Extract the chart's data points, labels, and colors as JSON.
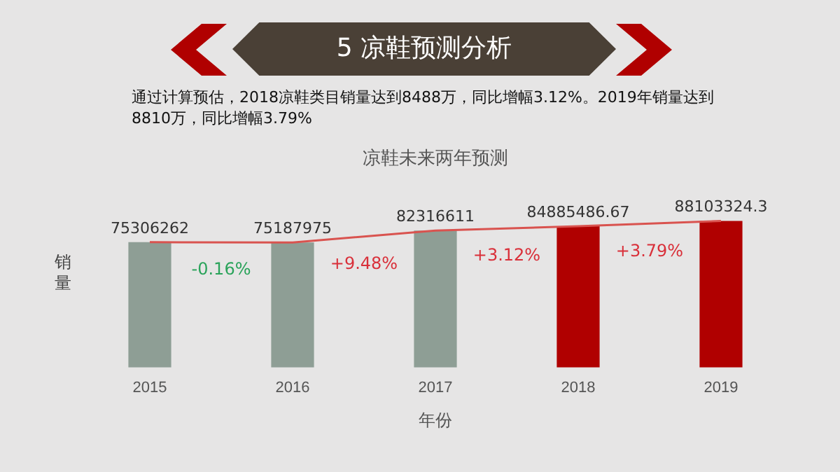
{
  "chart_data": {
    "type": "bar",
    "title": "5 凉鞋预测分析",
    "subtitle": "通过计算预估，2018凉鞋类目销量达到8488万，同比增幅3.12%。2019年销量达到8810万，同比增幅3.79%",
    "xlabel": "年份",
    "ylabel": "销量",
    "annotations": [
      "凉鞋未来两年预测",
      "-0.16%",
      "+9.48%",
      "+3.12%",
      "+3.79%"
    ],
    "categories": [
      "2015",
      "2016",
      "2017",
      "2018",
      "2019"
    ],
    "series": [
      {
        "colors": [
          "#8e9e95",
          "#8e9e95",
          "#8e9e95",
          "#b00000",
          "#b00000"
        ],
        "values": [
          75306262,
          75187975,
          82316611,
          84885486.67,
          88103324.3
        ],
        "value_labels": [
          "75306262",
          "75187975",
          "82316611",
          "84885486.67",
          "88103324.3"
        ]
      },
      {
        "type": "line",
        "color": "#d9534f",
        "values": [
          75306262,
          75187975,
          82316611,
          84885486.67,
          88103324.3
        ]
      }
    ],
    "legend": false,
    "grid": false,
    "marker": "none"
  }
}
